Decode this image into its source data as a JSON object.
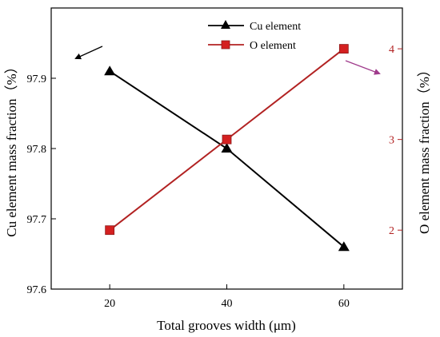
{
  "chart_data": {
    "type": "line",
    "xlabel": "Total grooves width (μm)",
    "ylabel_left": "Cu element mass fraction（%）",
    "ylabel_right": "O element mass fraction（%）",
    "x_ticks": [
      "20",
      "40",
      "60"
    ],
    "y_left_ticks": [
      "97.6",
      "97.7",
      "97.8",
      "97.9"
    ],
    "y_right_ticks": [
      "2",
      "3",
      "4"
    ],
    "xlim": [
      10,
      70
    ],
    "ylim_left": [
      97.6,
      98.0
    ],
    "ylim_right": [
      1.35,
      4.45
    ],
    "legend_position": "top-center",
    "series": [
      {
        "name": "Cu element",
        "axis": "left",
        "color": "#000000",
        "marker": "triangle",
        "x": [
          20,
          40,
          60
        ],
        "y": [
          97.91,
          97.8,
          97.66
        ]
      },
      {
        "name": "O element",
        "axis": "right",
        "color": "#b22222",
        "marker": "square",
        "x": [
          20,
          40,
          60
        ],
        "y": [
          2.0,
          3.0,
          4.0
        ]
      }
    ],
    "colors": {
      "left_axis": "#000000",
      "right_axis": "#b22222",
      "cu_arrow": "#000000",
      "o_arrow": "#a03c8c"
    }
  }
}
